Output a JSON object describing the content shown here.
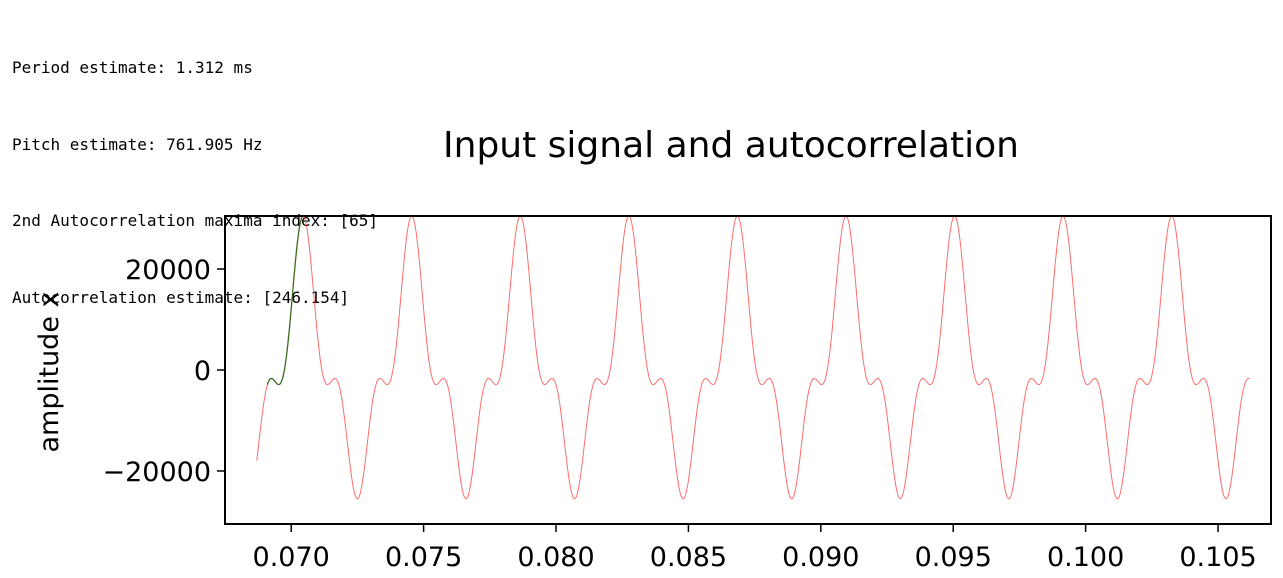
{
  "console": {
    "lines": [
      "Period estimate: 1.312 ms",
      "Pitch estimate: 761.905 Hz",
      "2nd Autocorrelation maxima index: [65]",
      "Autocorrelation estimate: [246.154]"
    ]
  },
  "chart_data": {
    "type": "line",
    "title": "Input signal and autocorrelation",
    "xlabel": "",
    "ylabel": "amplitude x",
    "xlim": [
      0.0675,
      0.107
    ],
    "ylim": [
      -30500,
      30500
    ],
    "x_ticks": [
      0.07,
      0.075,
      0.08,
      0.085,
      0.09,
      0.095,
      0.1,
      0.105
    ],
    "x_tick_labels": [
      "0.070",
      "0.075",
      "0.080",
      "0.085",
      "0.090",
      "0.095",
      "0.100",
      "0.105"
    ],
    "y_ticks": [
      -20000,
      0,
      20000
    ],
    "y_tick_labels": [
      "−20000",
      "0",
      "20000"
    ],
    "grid": false,
    "legend": "none",
    "series": [
      {
        "color": "#ff3b3b",
        "x_start": 0.0687,
        "x_end": 0.1062,
        "period": 0.0041,
        "phase_x": 0.07045,
        "components": [
          {
            "harmonic": 1,
            "amplitude": 20000
          },
          {
            "harmonic": 2,
            "amplitude": 2500
          },
          {
            "harmonic": 3,
            "amplitude": 8000
          }
        ]
      },
      {
        "color": "#3c6e22",
        "x_start": 0.0691,
        "x_end": 0.07045
      }
    ]
  }
}
